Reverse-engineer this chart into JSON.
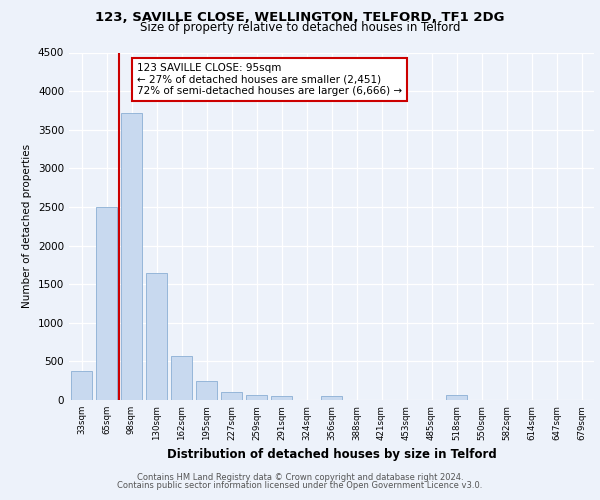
{
  "title1": "123, SAVILLE CLOSE, WELLINGTON, TELFORD, TF1 2DG",
  "title2": "Size of property relative to detached houses in Telford",
  "xlabel": "Distribution of detached houses by size in Telford",
  "ylabel": "Number of detached properties",
  "categories": [
    "33sqm",
    "65sqm",
    "98sqm",
    "130sqm",
    "162sqm",
    "195sqm",
    "227sqm",
    "259sqm",
    "291sqm",
    "324sqm",
    "356sqm",
    "388sqm",
    "421sqm",
    "453sqm",
    "485sqm",
    "518sqm",
    "550sqm",
    "582sqm",
    "614sqm",
    "647sqm",
    "679sqm"
  ],
  "values": [
    370,
    2500,
    3720,
    1640,
    570,
    240,
    110,
    60,
    50,
    0,
    50,
    0,
    0,
    0,
    0,
    60,
    0,
    0,
    0,
    0,
    0
  ],
  "bar_color": "#c8d9ef",
  "bar_edge_color": "#8aafd4",
  "highlight_index": 2,
  "highlight_line_color": "#cc0000",
  "annotation_line1": "123 SAVILLE CLOSE: 95sqm",
  "annotation_line2": "← 27% of detached houses are smaller (2,451)",
  "annotation_line3": "72% of semi-detached houses are larger (6,666) →",
  "annotation_box_color": "#ffffff",
  "annotation_box_edge_color": "#cc0000",
  "ylim": [
    0,
    4500
  ],
  "yticks": [
    0,
    500,
    1000,
    1500,
    2000,
    2500,
    3000,
    3500,
    4000,
    4500
  ],
  "footer1": "Contains HM Land Registry data © Crown copyright and database right 2024.",
  "footer2": "Contains public sector information licensed under the Open Government Licence v3.0.",
  "bg_color": "#edf2fa",
  "plot_bg_color": "#edf2fa"
}
